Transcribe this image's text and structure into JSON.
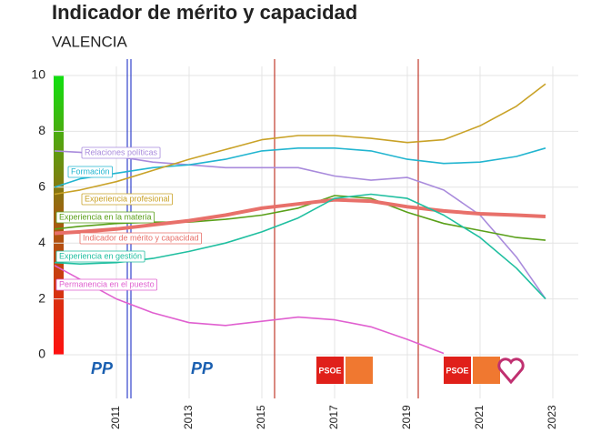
{
  "chart_data": {
    "type": "line",
    "title": "Indicador de mérito y capacidad",
    "subtitle": "VALENCIA",
    "x": [
      2009.3,
      2010,
      2011,
      2012,
      2013,
      2014,
      2015,
      2016,
      2017,
      2018,
      2019,
      2020,
      2021,
      2022,
      2022.8
    ],
    "xlim": [
      2009.25,
      2023.7
    ],
    "xticks": [
      2011,
      2013,
      2015,
      2017,
      2019,
      2021,
      2023
    ],
    "ylim": [
      0,
      10
    ],
    "yticks": [
      0,
      2,
      4,
      6,
      8,
      10
    ],
    "grid": true,
    "series": [
      {
        "name": "Relaciones políticas",
        "color": "#a98bdc",
        "values": [
          7.3,
          7.25,
          7.1,
          6.9,
          6.8,
          6.7,
          6.7,
          6.7,
          6.4,
          6.25,
          6.35,
          5.9,
          5.0,
          3.5,
          2.0
        ]
      },
      {
        "name": "Formación",
        "color": "#22b5d0",
        "values": [
          6.0,
          6.3,
          6.5,
          6.7,
          6.8,
          7.0,
          7.3,
          7.4,
          7.4,
          7.3,
          7.0,
          6.85,
          6.9,
          7.1,
          7.4
        ]
      },
      {
        "name": "Experiencia profesional",
        "color": "#c9a227",
        "values": [
          5.75,
          5.9,
          6.2,
          6.6,
          7.0,
          7.35,
          7.7,
          7.85,
          7.85,
          7.75,
          7.6,
          7.7,
          8.2,
          8.9,
          9.7
        ]
      },
      {
        "name": "Experiencia en la materia",
        "color": "#5aa01a",
        "values": [
          4.5,
          4.6,
          4.7,
          4.75,
          4.75,
          4.85,
          5.0,
          5.25,
          5.7,
          5.6,
          5.1,
          4.7,
          4.45,
          4.2,
          4.1
        ]
      },
      {
        "name": "Indicador de mérito y capacidad",
        "color": "#e8706a",
        "values": [
          4.35,
          4.4,
          4.5,
          4.65,
          4.8,
          5.0,
          5.25,
          5.4,
          5.55,
          5.5,
          5.3,
          5.15,
          5.05,
          5.0,
          4.95
        ]
      },
      {
        "name": "Experiencia en gestión",
        "color": "#20bfa0",
        "values": [
          3.3,
          3.25,
          3.3,
          3.45,
          3.7,
          4.0,
          4.4,
          4.9,
          5.6,
          5.75,
          5.6,
          5.0,
          4.2,
          3.1,
          2.0
        ]
      },
      {
        "name": "Permanencia en el puesto",
        "color": "#e060d0",
        "values": [
          3.2,
          2.7,
          2.0,
          1.5,
          1.15,
          1.05,
          1.2,
          1.35,
          1.25,
          1.0,
          0.55,
          0.05,
          null,
          null,
          null
        ]
      }
    ],
    "elections": [
      {
        "x": 2011.35,
        "color": "#3344cc"
      },
      {
        "x": 2015.35,
        "color": "#c0392b"
      },
      {
        "x": 2019.3,
        "color": "#c0392b"
      }
    ],
    "parties": [
      {
        "x": 2010.6,
        "label": "PP"
      },
      {
        "x": 2013.35,
        "label": "PP"
      },
      {
        "x": 2016.9,
        "label": "PSOE"
      },
      {
        "x": 2020.4,
        "label": "PSOE"
      }
    ]
  }
}
